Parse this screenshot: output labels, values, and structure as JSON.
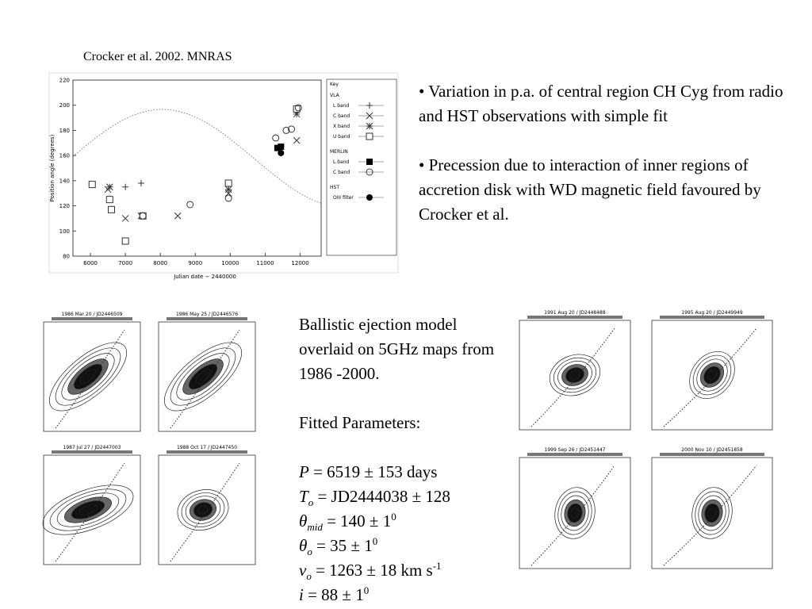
{
  "citation": "Crocker et al. 2002. MNRAS",
  "bullets": [
    "• Variation in p.a. of central region CH Cyg from radio and HST observations with simple fit",
    "• Precession due to interaction of inner regions of accretion disk with WD magnetic field favoured by Crocker et al."
  ],
  "chart": {
    "type": "scatter",
    "xlabel": "Julian date − 2440000",
    "ylabel": "Position angle (degrees)",
    "xlim": [
      5500,
      12600
    ],
    "ylim": [
      80,
      220
    ],
    "xticks": [
      6000,
      7000,
      8000,
      9000,
      10000,
      11000,
      12000
    ],
    "yticks": [
      80,
      100,
      120,
      140,
      160,
      180,
      200,
      220
    ],
    "key_title": "Key",
    "groups": [
      {
        "name": "VLA",
        "series": [
          {
            "name": "L band",
            "marker": "plus",
            "color": "#333333",
            "x": [
              7000,
              7450,
              9950
            ],
            "y": [
              135,
              138,
              137
            ]
          },
          {
            "name": "C band",
            "marker": "cross",
            "color": "#333333",
            "x": [
              6500,
              7000,
              7450,
              8500,
              9950,
              11900
            ],
            "y": [
              133,
              110,
              112,
              112,
              130,
              172
            ]
          },
          {
            "name": "X band",
            "marker": "asterisk",
            "color": "#333333",
            "x": [
              6550,
              9950,
              11900
            ],
            "y": [
              135,
              133,
              193
            ]
          },
          {
            "name": "U band",
            "marker": "square",
            "color": "#333333",
            "x": [
              6050,
              6550,
              6600,
              7000,
              7500,
              9950,
              11900
            ],
            "y": [
              137,
              125,
              117,
              92,
              112,
              138,
              197
            ]
          }
        ]
      },
      {
        "name": "MERLIN",
        "series": [
          {
            "name": "L band",
            "marker": "filled-square",
            "color": "#000000",
            "x": [
              11350,
              11450
            ],
            "y": [
              166,
              167
            ]
          },
          {
            "name": "C band",
            "marker": "circle",
            "color": "#333333",
            "x": [
              7500,
              8850,
              9950,
              11300,
              11600,
              11750,
              11950
            ],
            "y": [
              112,
              121,
              126,
              174,
              180,
              181,
              198
            ]
          }
        ]
      },
      {
        "name": "HST",
        "series": [
          {
            "name": "OIII filter",
            "marker": "filled-circle",
            "color": "#000000",
            "x": [
              11450
            ],
            "y": [
              162
            ]
          }
        ]
      }
    ]
  },
  "maps": [
    "1986 Mar 20 / JD2446509",
    "1986 May 25 / JD2446576",
    "1987 Jul 27 / JD2447003",
    "1988 Oct 17 / JD2447450",
    "1991 Aug 20 / JD2448488",
    "1995 Aug 20 / JD2449949",
    "1999 Sep 26 / JD2451447",
    "2000 Nov 10 / JD2451858"
  ],
  "description": "Ballistic ejection model overlaid on 5GHz maps from 1986 -2000.",
  "params_title": "Fitted Parameters:",
  "params": [
    {
      "symbol": "P",
      "text": " = 6519 ± 153 days"
    },
    {
      "symbol": "T",
      "sub": "o",
      "text": " = JD2444038 ± 128"
    },
    {
      "symbol": "θ",
      "sub": "mid",
      "text": " = 140 ± 1",
      "sup": "0"
    },
    {
      "symbol": "θ",
      "sub": "o",
      "text": " = 35 ± 1",
      "sup": "0"
    },
    {
      "symbol": "v",
      "sub": "o",
      "text": " = 1263 ± 18 km s",
      "sup": "-1"
    },
    {
      "symbol": "i",
      "text": " = 88 ± 1",
      "sup": "0"
    }
  ]
}
